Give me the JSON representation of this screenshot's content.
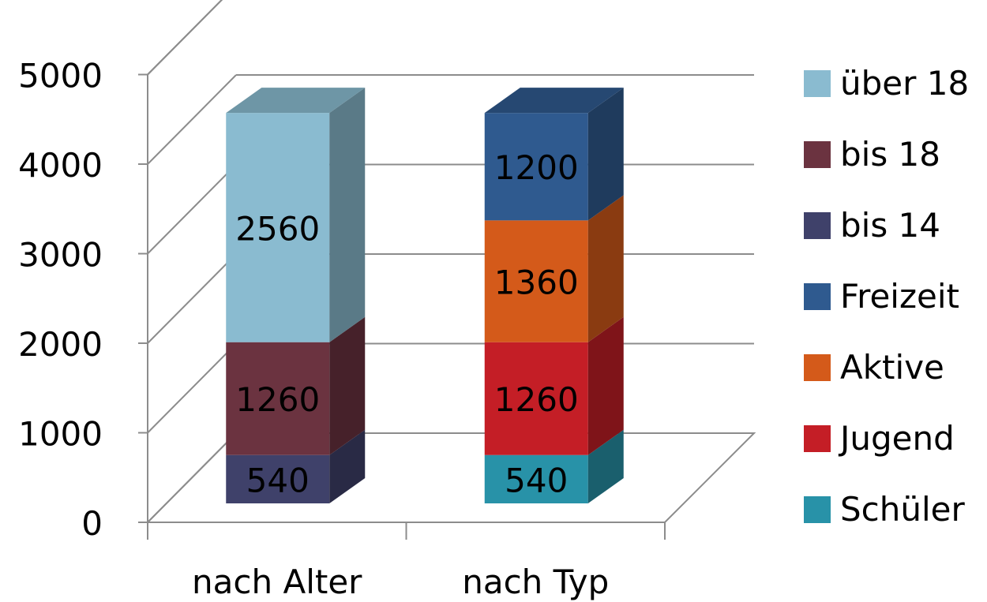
{
  "chart_data": {
    "type": "bar",
    "stacked": true,
    "three_d": true,
    "grid": true,
    "legend_position": "right",
    "title": "",
    "xlabel": "",
    "ylabel": "",
    "ylim": [
      0,
      5000
    ],
    "yticks": [
      "0",
      "1000",
      "2000",
      "3000",
      "4000",
      "5000"
    ],
    "categories": [
      "nach Alter",
      "nach Typ"
    ],
    "series": [
      {
        "name": "über 18",
        "color": "#8abbd0",
        "values": [
          2560,
          null
        ]
      },
      {
        "name": "bis 18",
        "color": "#6b3340",
        "values": [
          1260,
          null
        ]
      },
      {
        "name": "bis 14",
        "color": "#3f416a",
        "values": [
          540,
          null
        ]
      },
      {
        "name": "Freizeit",
        "color": "#2f5a8f",
        "values": [
          null,
          1200
        ]
      },
      {
        "name": "Aktive",
        "color": "#d45a1a",
        "values": [
          null,
          1360
        ]
      },
      {
        "name": "Jugend",
        "color": "#c41e26",
        "values": [
          null,
          1260
        ]
      },
      {
        "name": "Schüler",
        "color": "#2892a8",
        "values": [
          null,
          540
        ]
      }
    ],
    "stack_order": {
      "nach Alter": [
        "bis 14",
        "bis 18",
        "über 18"
      ],
      "nach Typ": [
        "Schüler",
        "Jugend",
        "Aktive",
        "Freizeit"
      ]
    }
  }
}
